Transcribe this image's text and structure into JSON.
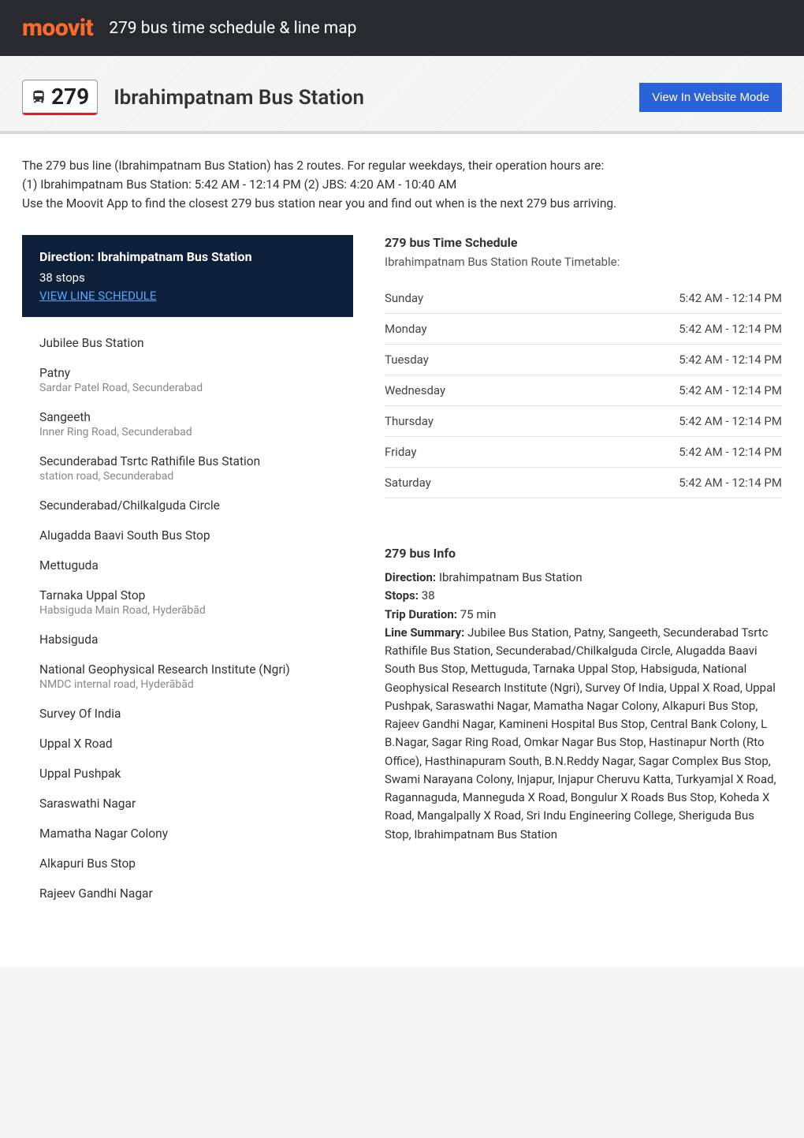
{
  "header": {
    "logo": "moovit",
    "title": "279 bus time schedule & line map"
  },
  "routeHeader": {
    "number": "279",
    "destination": "Ibrahimpatnam Bus Station",
    "websiteBtn": "View In Website Mode"
  },
  "intro": "The 279 bus line (Ibrahimpatnam Bus Station) has 2 routes. For regular weekdays, their operation hours are:\n(1) Ibrahimpatnam Bus Station: 5:42 AM - 12:14 PM (2) JBS: 4:20 AM - 10:40 AM\nUse the Moovit App to find the closest 279 bus station near you and find out when is the next 279 bus arriving.",
  "direction": {
    "title": "Direction: Ibrahimpatnam Bus Station",
    "stopsCount": "38 stops",
    "link": "VIEW LINE SCHEDULE"
  },
  "stops": [
    {
      "name": "Jubilee Bus Station",
      "loc": ""
    },
    {
      "name": "Patny",
      "loc": "Sardar Patel Road, Secunderabad"
    },
    {
      "name": "Sangeeth",
      "loc": "Inner Ring Road, Secunderabad"
    },
    {
      "name": "Secunderabad Tsrtc Rathifile Bus Station",
      "loc": "station road, Secunderabad"
    },
    {
      "name": "Secunderabad/Chilkalguda Circle",
      "loc": ""
    },
    {
      "name": "Alugadda Baavi South Bus Stop",
      "loc": ""
    },
    {
      "name": "Mettuguda",
      "loc": ""
    },
    {
      "name": "Tarnaka Uppal Stop",
      "loc": "Habsiguda Main Road, Hyderābād"
    },
    {
      "name": "Habsiguda",
      "loc": ""
    },
    {
      "name": "National Geophysical Research Institute (Ngri)",
      "loc": "NMDC internal road, Hyderābād"
    },
    {
      "name": "Survey Of India",
      "loc": ""
    },
    {
      "name": "Uppal X Road",
      "loc": ""
    },
    {
      "name": "Uppal Pushpak",
      "loc": ""
    },
    {
      "name": "Saraswathi Nagar",
      "loc": ""
    },
    {
      "name": "Mamatha Nagar Colony",
      "loc": ""
    },
    {
      "name": "Alkapuri Bus Stop",
      "loc": ""
    },
    {
      "name": "Rajeev Gandhi Nagar",
      "loc": ""
    }
  ],
  "schedule": {
    "title": "279 bus Time Schedule",
    "subtitle": "Ibrahimpatnam Bus Station Route Timetable:",
    "rows": [
      {
        "day": "Sunday",
        "time": "5:42 AM - 12:14 PM"
      },
      {
        "day": "Monday",
        "time": "5:42 AM - 12:14 PM"
      },
      {
        "day": "Tuesday",
        "time": "5:42 AM - 12:14 PM"
      },
      {
        "day": "Wednesday",
        "time": "5:42 AM - 12:14 PM"
      },
      {
        "day": "Thursday",
        "time": "5:42 AM - 12:14 PM"
      },
      {
        "day": "Friday",
        "time": "5:42 AM - 12:14 PM"
      },
      {
        "day": "Saturday",
        "time": "5:42 AM - 12:14 PM"
      }
    ]
  },
  "info": {
    "title": "279 bus Info",
    "directionLabel": "Direction:",
    "directionVal": "Ibrahimpatnam Bus Station",
    "stopsLabel": "Stops:",
    "stopsVal": "38",
    "durationLabel": "Trip Duration:",
    "durationVal": "75 min",
    "summaryLabel": "Line Summary:",
    "summaryVal": "Jubilee Bus Station, Patny, Sangeeth, Secunderabad Tsrtc Rathifile Bus Station, Secunderabad/Chilkalguda Circle, Alugadda Baavi South Bus Stop, Mettuguda, Tarnaka Uppal Stop, Habsiguda, National Geophysical Research Institute (Ngri), Survey Of India, Uppal X Road, Uppal Pushpak, Saraswathi Nagar, Mamatha Nagar Colony, Alkapuri Bus Stop, Rajeev Gandhi Nagar, Kamineni Hospital Bus Stop, Central Bank Colony, L B.Nagar, Sagar Ring Road, Omkar Nagar Bus Stop, Hastinapur North (Rto Office), Hasthinapuram South, B.N.Reddy Nagar, Sagar Complex Bus Stop, Swami Narayana Colony, Injapur, Injapur Cheruvu Katta, Turkyamjal X Road, Ragannaguda, Manneguda X Road, Bongulur X Roads Bus Stop, Koheda X Road, Mangalpally X Road, Sri Indu Engineering College, Sheriguda Bus Stop, Ibrahimpatnam Bus Station"
  },
  "colors": {
    "brand": "#ff6a2b",
    "headerBg": "#292a30",
    "btnBg": "#2962d9",
    "directionBg": "#0e1f3a",
    "link": "#5aa7ff",
    "accentRed": "#e41e26"
  }
}
